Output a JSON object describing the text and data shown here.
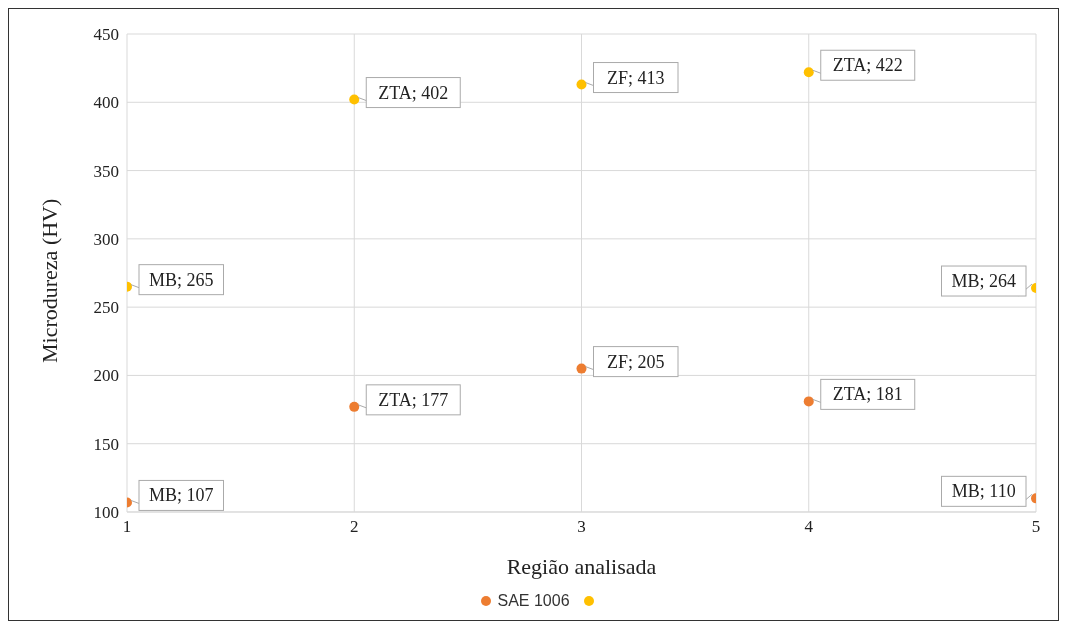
{
  "chart_data": {
    "type": "scatter",
    "xlabel": "Região analisada",
    "ylabel": "Microdureza  (HV)",
    "x": [
      1,
      2,
      3,
      4,
      5
    ],
    "series": [
      {
        "name": "SAE 1006",
        "color": "#ed7d31",
        "values": [
          107,
          177,
          205,
          181,
          110
        ],
        "value_labels": [
          "MB; 107",
          "ZTA; 177",
          "ZF; 205",
          "ZTA; 181",
          "MB; 110"
        ]
      },
      {
        "color": "#ffc000",
        "values": [
          265,
          402,
          413,
          422,
          264
        ],
        "value_labels": [
          "MB; 265",
          "ZTA; 402",
          "ZF; 413",
          "ZTA; 422",
          "MB; 264"
        ]
      }
    ],
    "xlim": [
      1,
      5
    ],
    "xticks": [
      1,
      2,
      3,
      4,
      5
    ],
    "ylim": [
      100,
      450
    ],
    "yticks": [
      100,
      150,
      200,
      250,
      300,
      350,
      400,
      450
    ],
    "grid": true,
    "legend": "bottom",
    "marker": "circle"
  }
}
